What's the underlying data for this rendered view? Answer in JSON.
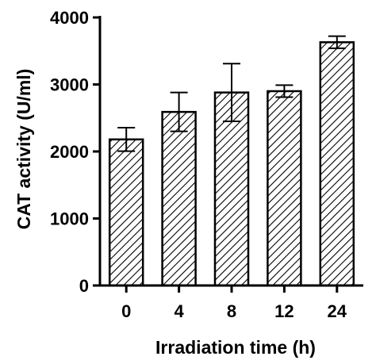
{
  "chart_data": {
    "type": "bar",
    "categories": [
      "0",
      "4",
      "8",
      "12",
      "24"
    ],
    "values": [
      2180,
      2590,
      2880,
      2900,
      3630
    ],
    "errors": [
      175,
      290,
      430,
      90,
      90
    ],
    "xlabel": "Irradiation time (h)",
    "ylabel": "CAT activity (U/ml)",
    "ylim": [
      0,
      4000
    ],
    "yticks": [
      0,
      1000,
      2000,
      3000,
      4000
    ],
    "grid": false,
    "legend": "none",
    "bar_fill": "diagonal hatch",
    "colors": {
      "ink": "#000000",
      "background": "#ffffff"
    }
  }
}
